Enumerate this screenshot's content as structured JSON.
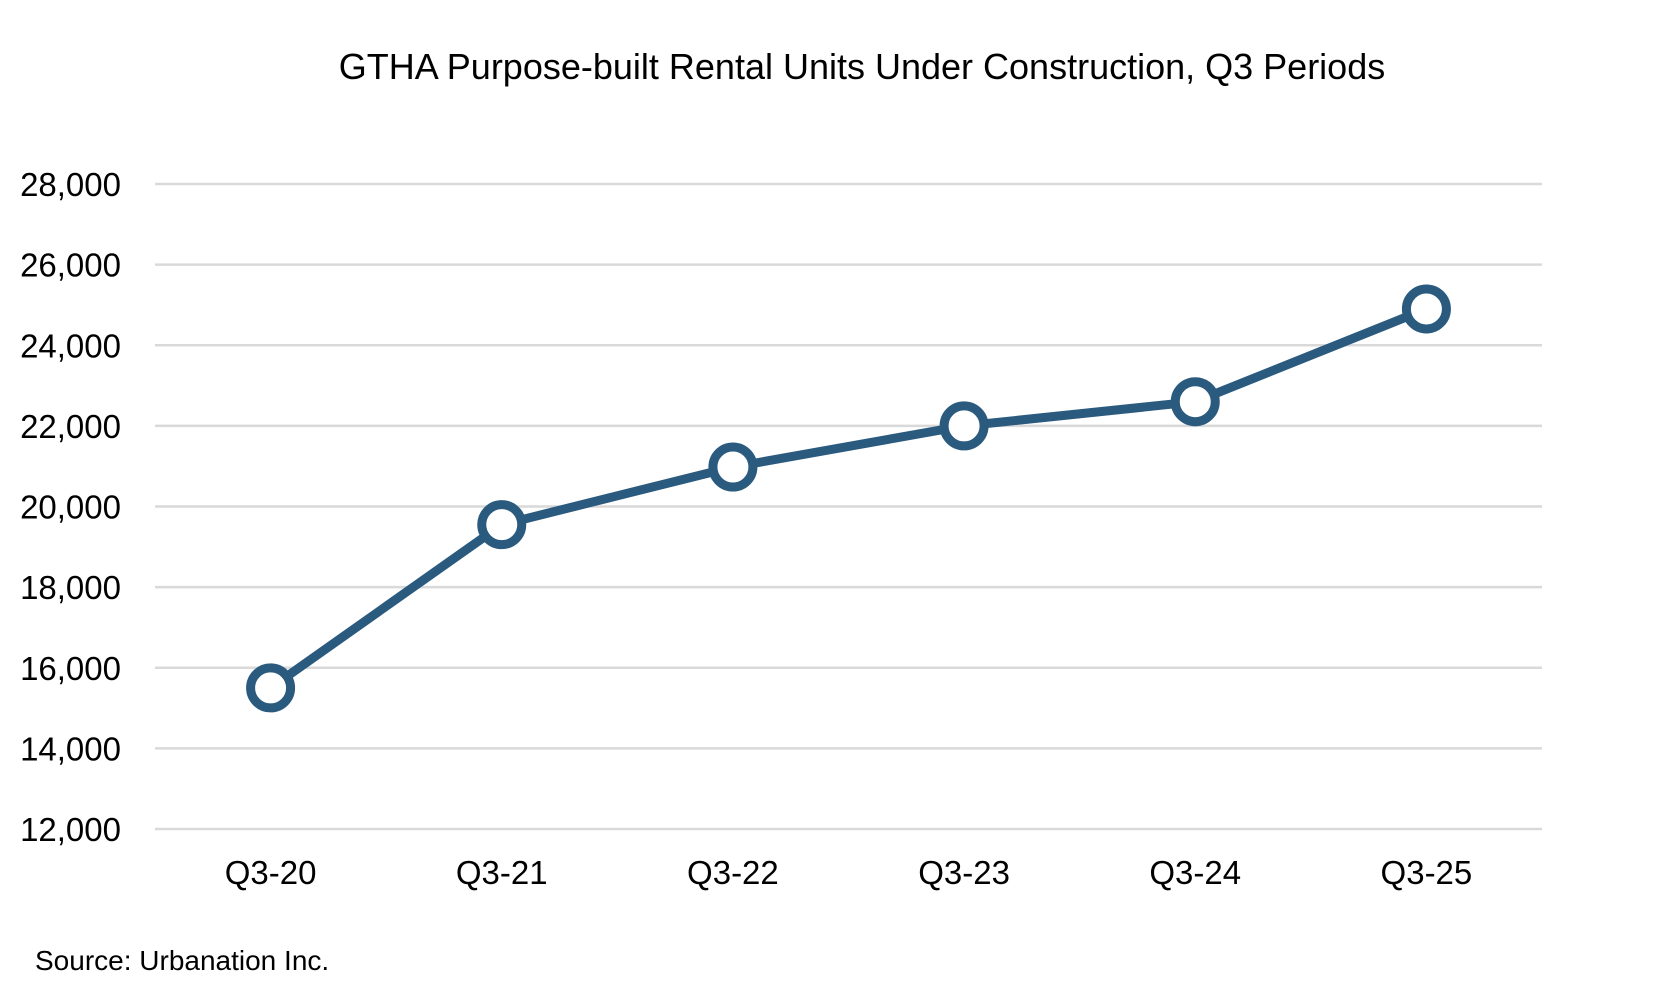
{
  "chart_data": {
    "type": "line",
    "title": "GTHA Purpose-built Rental Units Under Construction, Q3 Periods",
    "xlabel": "",
    "ylabel": "",
    "categories": [
      "Q3-20",
      "Q3-21",
      "Q3-22",
      "Q3-23",
      "Q3-24",
      "Q3-25"
    ],
    "series": [
      {
        "values": [
          15500,
          19550,
          20980,
          22000,
          22600,
          24900
        ],
        "color": "#2b5a7f",
        "marker": "hollow-circle"
      }
    ],
    "ylim": [
      12000,
      28000
    ],
    "yticks": [
      12000,
      14000,
      16000,
      18000,
      20000,
      22000,
      24000,
      26000,
      28000
    ],
    "ytick_labels": [
      "12,000",
      "14,000",
      "16,000",
      "18,000",
      "20,000",
      "22,000",
      "24,000",
      "26,000",
      "28,000"
    ],
    "grid": true,
    "gridline_color": "#d9d9d9",
    "legend": "none",
    "source": "Source: Urbanation Inc."
  }
}
